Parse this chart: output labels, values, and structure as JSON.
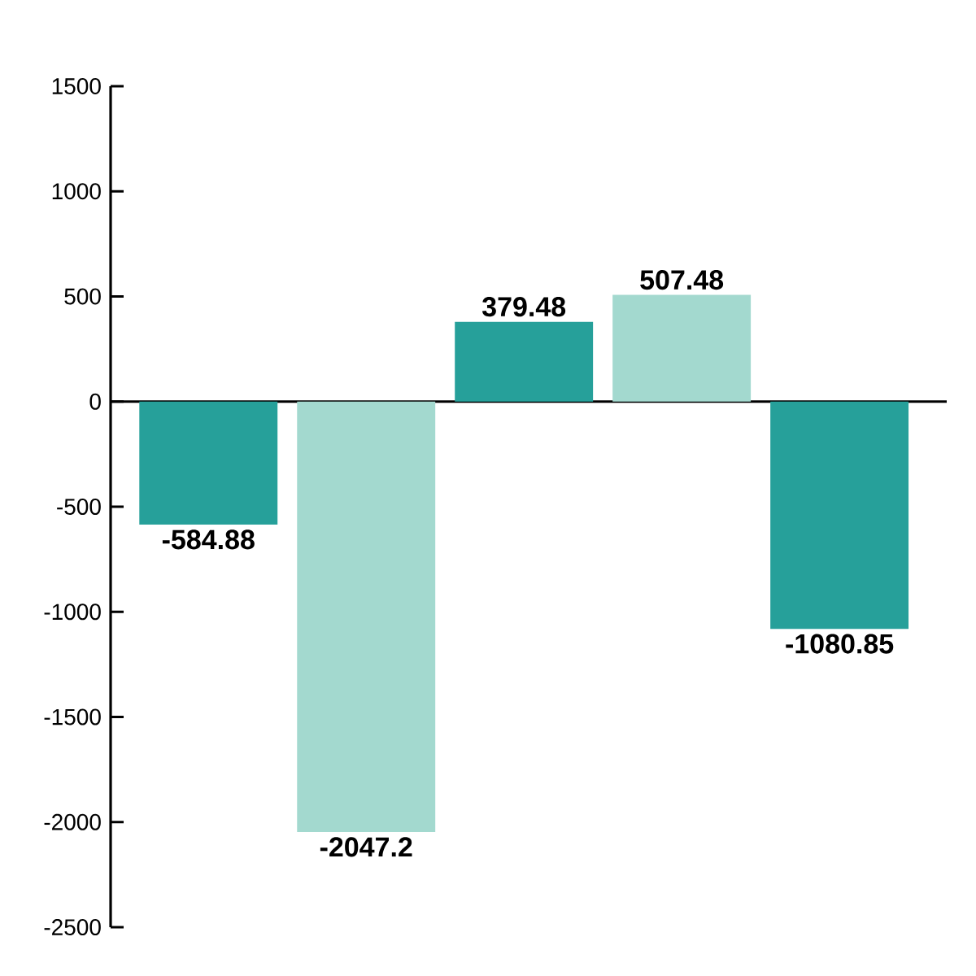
{
  "chart_data": {
    "type": "bar",
    "categories": [
      null,
      null,
      null,
      null,
      null
    ],
    "values": [
      -584.88,
      -2047.2,
      379.48,
      507.48,
      -1080.85
    ],
    "colors": [
      "#26a09a",
      "#a3d9cf",
      "#26a09a",
      "#a3d9cf",
      "#26a09a"
    ],
    "ylim": [
      -2500,
      1500
    ],
    "yticks": [
      -2500,
      -2000,
      -1500,
      -1000,
      -500,
      0,
      500,
      1000,
      1500
    ],
    "data_labels": true
  }
}
